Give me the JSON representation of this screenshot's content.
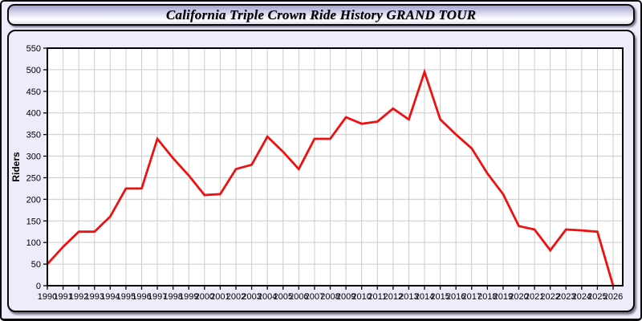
{
  "window": {
    "title": "California Triple Crown Ride History GRAND TOUR"
  },
  "colors": {
    "window_background": "#ececfa",
    "plot_background": "#ffffff",
    "grid": "#cccccc",
    "axis": "#000000",
    "line": "#ee1111"
  },
  "chart_data": {
    "type": "line",
    "title": "California Triple Crown Ride History GRAND TOUR",
    "xlabel": "",
    "ylabel": "Riders",
    "ylim": [
      0,
      550
    ],
    "ytick_step": 50,
    "grid": true,
    "legend": "none",
    "x": [
      1990,
      1991,
      1992,
      1993,
      1994,
      1995,
      1996,
      1997,
      1998,
      1999,
      2000,
      2001,
      2002,
      2003,
      2004,
      2005,
      2006,
      2007,
      2008,
      2009,
      2010,
      2011,
      2012,
      2013,
      2014,
      2015,
      2016,
      2017,
      2018,
      2019,
      2020,
      2021,
      2022,
      2023,
      2024,
      2025,
      2026
    ],
    "series": [
      {
        "name": "Riders",
        "color": "#ee1111",
        "values": [
          50,
          90,
          125,
          125,
          160,
          225,
          225,
          340,
          295,
          255,
          210,
          212,
          270,
          280,
          345,
          310,
          270,
          340,
          340,
          390,
          375,
          380,
          410,
          385,
          495,
          385,
          350,
          318,
          260,
          212,
          138,
          130,
          82,
          130,
          128,
          125,
          0
        ]
      }
    ]
  }
}
